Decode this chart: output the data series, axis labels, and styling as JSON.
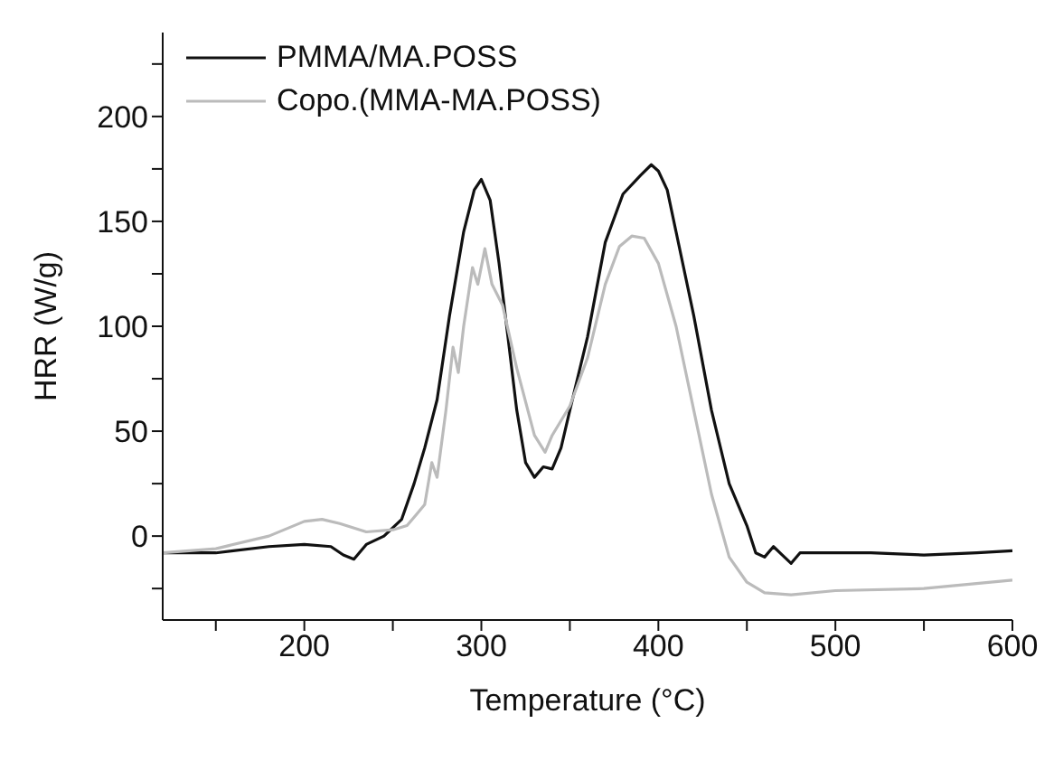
{
  "chart_data": {
    "type": "line",
    "xlabel": "Temperature (°C)",
    "ylabel": "HRR (W/g)",
    "xlim": [
      120,
      600
    ],
    "ylim": [
      -40,
      240
    ],
    "xticks": [
      {
        "value": 150,
        "label": null
      },
      200,
      {
        "value": 250,
        "label": null
      },
      300,
      {
        "value": 350,
        "label": null
      },
      400,
      {
        "value": 450,
        "label": null
      },
      500,
      {
        "value": 550,
        "label": null
      },
      600
    ],
    "yticks": [
      {
        "value": -25,
        "label": null
      },
      0,
      {
        "value": 25,
        "label": null
      },
      50,
      {
        "value": 75,
        "label": null
      },
      100,
      {
        "value": 125,
        "label": null
      },
      150,
      {
        "value": 175,
        "label": null
      },
      200,
      {
        "value": 225,
        "label": null
      }
    ],
    "grid": false,
    "legend": "top left",
    "marker": "none",
    "line_style": "solid",
    "series": [
      {
        "name": "PMMA/MA.POSS",
        "color": "#111111",
        "x": [
          120,
          150,
          180,
          200,
          215,
          222,
          228,
          235,
          245,
          255,
          262,
          268,
          275,
          282,
          290,
          296,
          300,
          305,
          310,
          315,
          320,
          325,
          330,
          335,
          340,
          345,
          350,
          360,
          370,
          380,
          390,
          396,
          400,
          405,
          410,
          420,
          430,
          440,
          450,
          455,
          460,
          465,
          470,
          475,
          480,
          500,
          520,
          550,
          580,
          600
        ],
        "values": [
          -8,
          -8,
          -5,
          -4,
          -5,
          -9,
          -11,
          -4,
          0,
          8,
          25,
          42,
          65,
          105,
          145,
          165,
          170,
          160,
          130,
          95,
          60,
          35,
          28,
          33,
          32,
          42,
          60,
          95,
          140,
          163,
          172,
          177,
          174,
          165,
          145,
          105,
          60,
          25,
          5,
          -8,
          -10,
          -5,
          -9,
          -13,
          -8,
          -8,
          -8,
          -9,
          -8,
          -7
        ]
      },
      {
        "name": "Copo.(MMA-MA.POSS)",
        "color": "#bbbbbb",
        "x": [
          120,
          150,
          180,
          200,
          210,
          220,
          235,
          250,
          258,
          263,
          268,
          272,
          275,
          280,
          284,
          287,
          290,
          295,
          298,
          302,
          306,
          312,
          320,
          330,
          336,
          340,
          350,
          360,
          370,
          378,
          385,
          392,
          400,
          410,
          420,
          430,
          440,
          450,
          460,
          475,
          500,
          550,
          600
        ],
        "values": [
          -8,
          -6,
          0,
          7,
          8,
          6,
          2,
          3,
          5,
          10,
          15,
          35,
          28,
          60,
          90,
          78,
          100,
          128,
          120,
          137,
          120,
          110,
          80,
          48,
          40,
          48,
          62,
          85,
          120,
          138,
          143,
          142,
          130,
          100,
          60,
          20,
          -10,
          -22,
          -27,
          -28,
          -26,
          -25,
          -21
        ]
      }
    ]
  }
}
